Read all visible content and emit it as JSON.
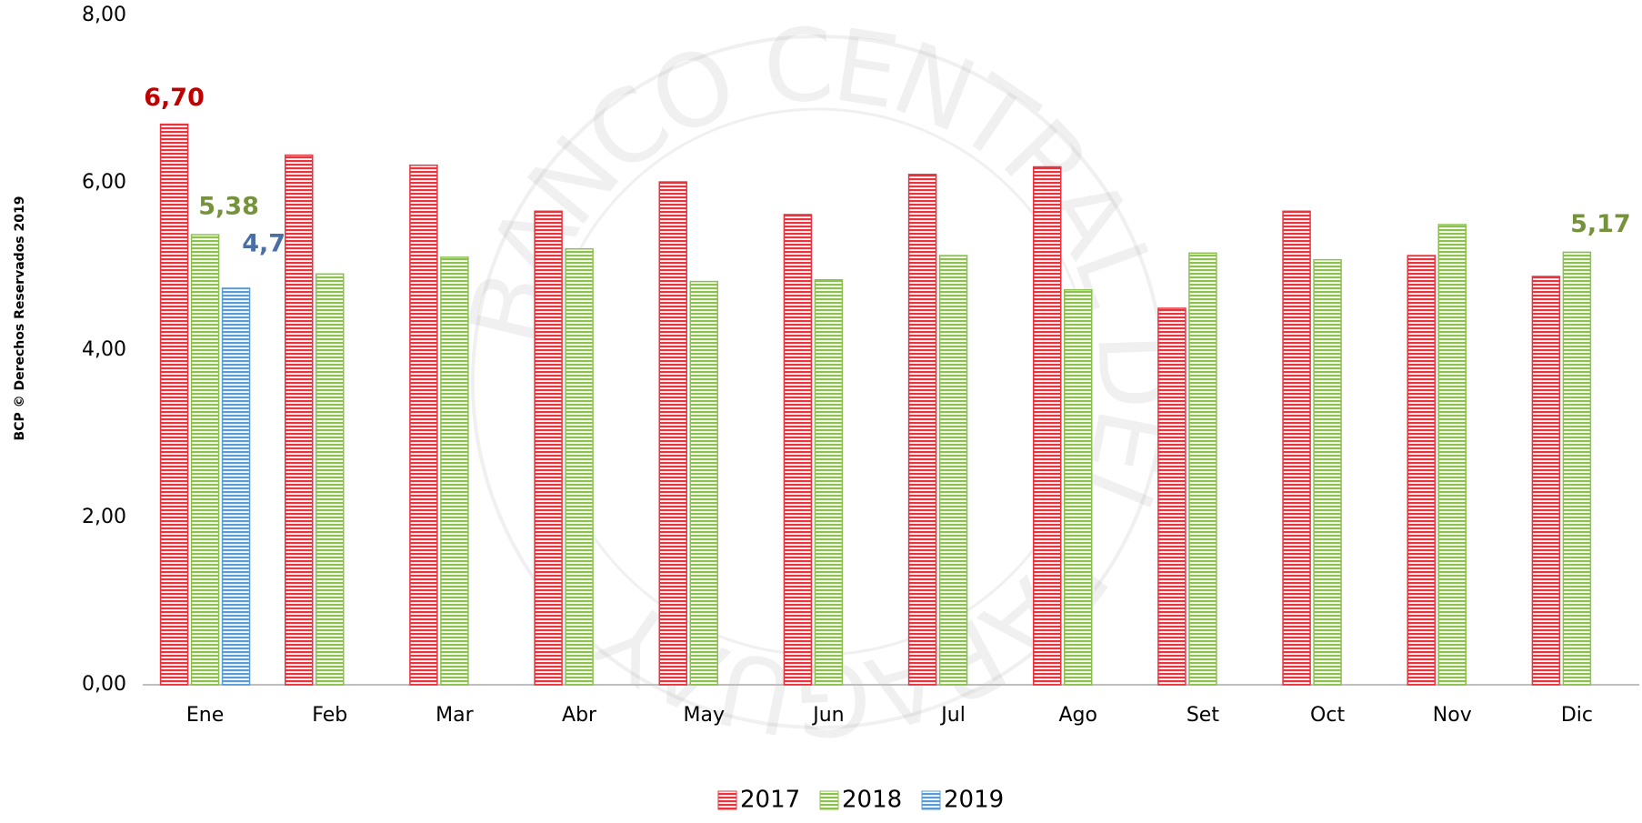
{
  "chart_data": {
    "type": "bar",
    "side_text": "BCP © Derechos Reservados 2019",
    "watermark": "BANCO CENTRAL DEL PARAGUAY",
    "categories": [
      "Ene",
      "Feb",
      "Mar",
      "Abr",
      "May",
      "Jun",
      "Jul",
      "Ago",
      "Set",
      "Oct",
      "Nov",
      "Dic"
    ],
    "series": [
      {
        "name": "2017",
        "color": "#e8343d",
        "values": [
          6.7,
          6.33,
          6.21,
          5.66,
          6.01,
          5.62,
          6.1,
          6.19,
          4.5,
          5.66,
          5.13,
          4.88
        ],
        "value_labels": [
          "6,70",
          null,
          null,
          null,
          null,
          null,
          null,
          null,
          null,
          null,
          null,
          null
        ],
        "label_color": "#c00000"
      },
      {
        "name": "2018",
        "color": "#8cc152",
        "values": [
          5.38,
          4.91,
          5.11,
          5.21,
          4.82,
          4.84,
          5.13,
          4.72,
          5.16,
          5.08,
          5.5,
          5.17
        ],
        "value_labels": [
          "5,38",
          null,
          null,
          null,
          null,
          null,
          null,
          null,
          null,
          null,
          null,
          "5,17"
        ],
        "label_color": "#76923c"
      },
      {
        "name": "2019",
        "color": "#5b9bd5",
        "values": [
          4.74,
          null,
          null,
          null,
          null,
          null,
          null,
          null,
          null,
          null,
          null,
          null
        ],
        "value_labels": [
          "4,74",
          null,
          null,
          null,
          null,
          null,
          null,
          null,
          null,
          null,
          null,
          null
        ],
        "label_color": "#4a6fa5"
      }
    ],
    "ylim": [
      0,
      8
    ],
    "yticks": [
      {
        "value": 0,
        "label": "0,00"
      },
      {
        "value": 2,
        "label": "2,00"
      },
      {
        "value": 4,
        "label": "4,00"
      },
      {
        "value": 6,
        "label": "6,00"
      },
      {
        "value": 8,
        "label": "8,00"
      }
    ],
    "grid": false,
    "legend": "bottom"
  }
}
